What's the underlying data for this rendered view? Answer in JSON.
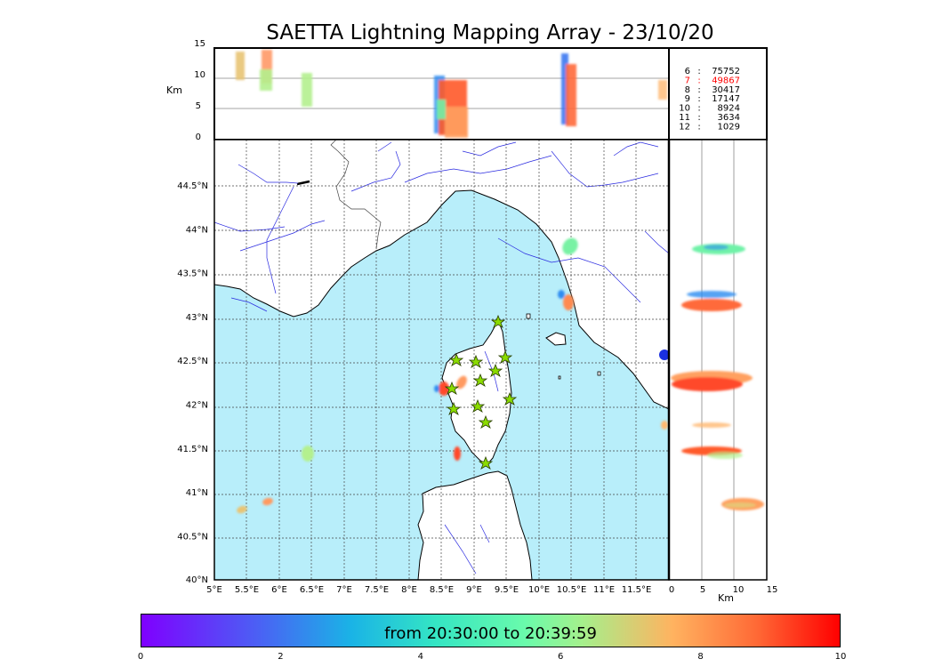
{
  "title": "SAETTA Lightning Mapping Array - 23/10/20",
  "alt_axis": {
    "label": "Km",
    "ticks": [
      "15",
      "10",
      "5",
      "0"
    ],
    "x_ticks": [
      "0",
      "5",
      "10",
      "15"
    ]
  },
  "map": {
    "lon_ticks": [
      "5°E",
      "5.5°E",
      "6°E",
      "6.5°E",
      "7°E",
      "7.5°E",
      "8°E",
      "8.5°E",
      "9°E",
      "9.5°E",
      "10°E",
      "10.5°E",
      "11°E",
      "11.5°E"
    ],
    "lat_ticks": [
      "44.5°N",
      "44°N",
      "43.5°N",
      "43°N",
      "42.5°N",
      "42°N",
      "41.5°N",
      "41°N",
      "40.5°N",
      "40°N"
    ],
    "lon_range": [
      5,
      12
    ],
    "lat_range": [
      40,
      45
    ],
    "sea_color": "#b8eefa",
    "land_color": "#ffffff",
    "station_color": "#8bdc00"
  },
  "counts": [
    {
      "idx": "6",
      "sep": ":",
      "value": "75752",
      "color": "#000000"
    },
    {
      "idx": "7",
      "sep": ":",
      "value": "49867",
      "color": "#ff0000"
    },
    {
      "idx": "8",
      "sep": ":",
      "value": "30417",
      "color": "#000000"
    },
    {
      "idx": "9",
      "sep": ":",
      "value": "17147",
      "color": "#000000"
    },
    {
      "idx": "10",
      "sep": ":",
      "value": "8924",
      "color": "#000000"
    },
    {
      "idx": "11",
      "sep": ":",
      "value": "3634",
      "color": "#000000"
    },
    {
      "idx": "12",
      "sep": ":",
      "value": "1029",
      "color": "#000000"
    }
  ],
  "colorbar": {
    "label": "from 20:30:00 to 20:39:59",
    "ticks": [
      "0",
      "2",
      "4",
      "6",
      "8",
      "10"
    ]
  }
}
